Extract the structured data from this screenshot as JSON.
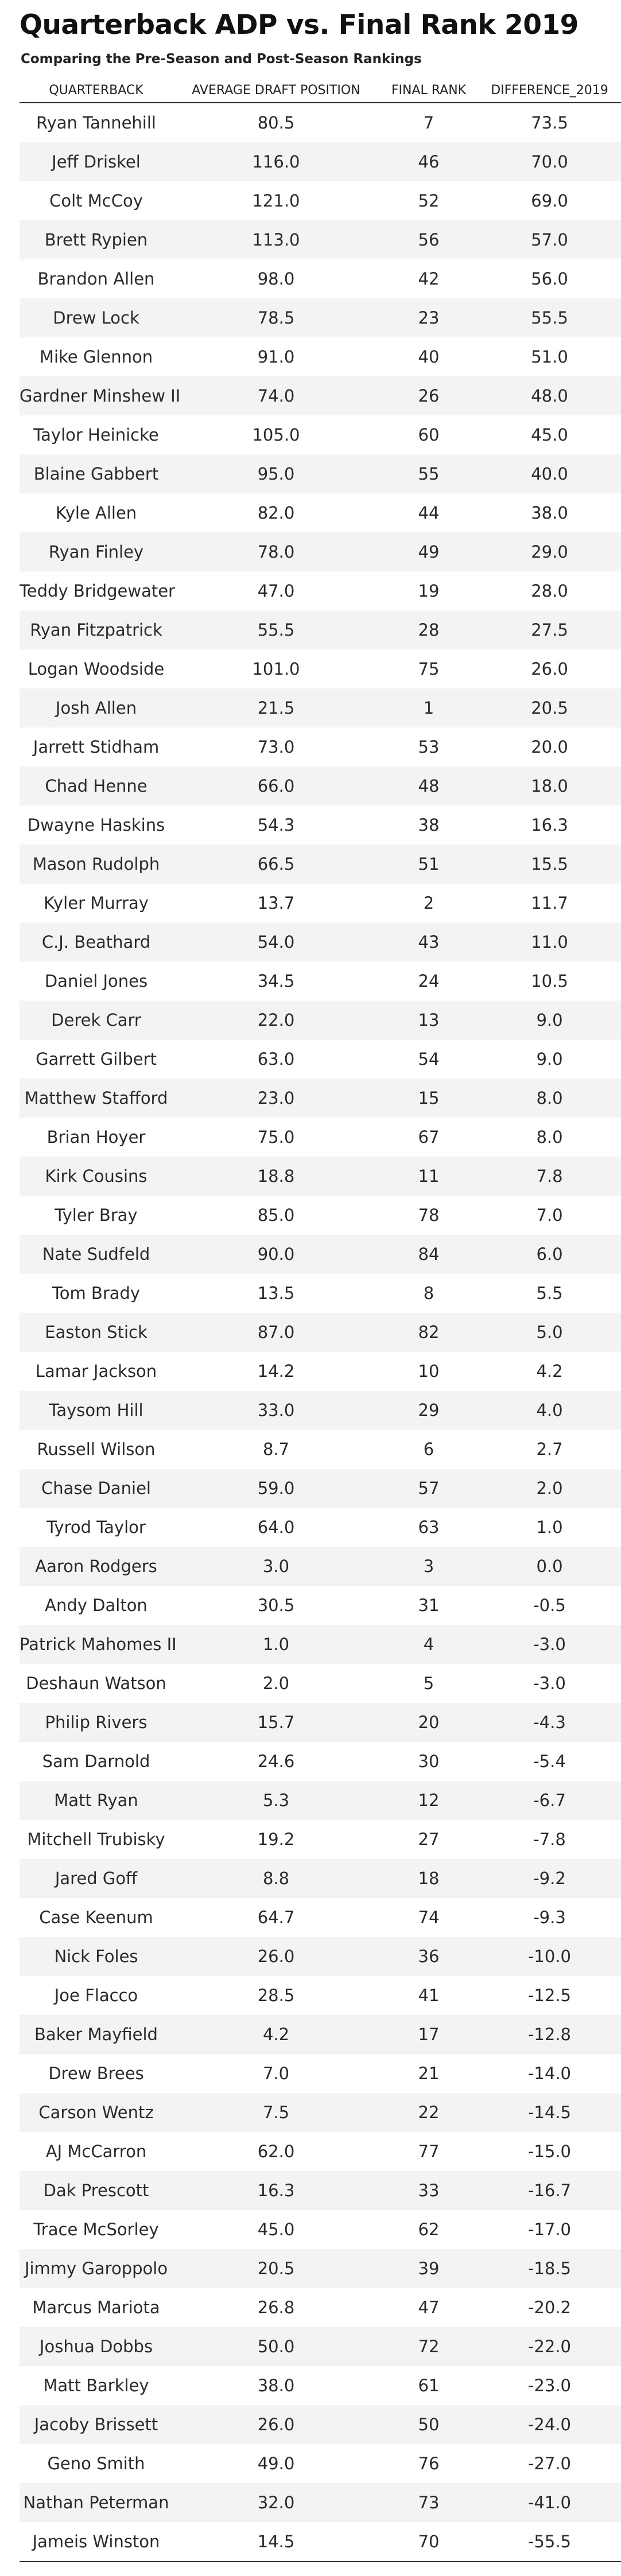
{
  "title": "Quarterback ADP vs. Final Rank 2019",
  "subtitle": "Comparing the Pre-Season and Post-Season Rankings",
  "columns": [
    "QUARTERBACK",
    "AVERAGE DRAFT POSITION",
    "FINAL RANK",
    "DIFFERENCE_2019"
  ],
  "rows": [
    [
      "Ryan Tannehill",
      "80.5",
      "7",
      "73.5"
    ],
    [
      "Jeff Driskel",
      "116.0",
      "46",
      "70.0"
    ],
    [
      "Colt McCoy",
      "121.0",
      "52",
      "69.0"
    ],
    [
      "Brett Rypien",
      "113.0",
      "56",
      "57.0"
    ],
    [
      "Brandon Allen",
      "98.0",
      "42",
      "56.0"
    ],
    [
      "Drew Lock",
      "78.5",
      "23",
      "55.5"
    ],
    [
      "Mike Glennon",
      "91.0",
      "40",
      "51.0"
    ],
    [
      "Gardner Minshew II",
      "74.0",
      "26",
      "48.0"
    ],
    [
      "Taylor Heinicke",
      "105.0",
      "60",
      "45.0"
    ],
    [
      "Blaine Gabbert",
      "95.0",
      "55",
      "40.0"
    ],
    [
      "Kyle Allen",
      "82.0",
      "44",
      "38.0"
    ],
    [
      "Ryan Finley",
      "78.0",
      "49",
      "29.0"
    ],
    [
      "Teddy Bridgewater",
      "47.0",
      "19",
      "28.0"
    ],
    [
      "Ryan Fitzpatrick",
      "55.5",
      "28",
      "27.5"
    ],
    [
      "Logan Woodside",
      "101.0",
      "75",
      "26.0"
    ],
    [
      "Josh Allen",
      "21.5",
      "1",
      "20.5"
    ],
    [
      "Jarrett Stidham",
      "73.0",
      "53",
      "20.0"
    ],
    [
      "Chad Henne",
      "66.0",
      "48",
      "18.0"
    ],
    [
      "Dwayne Haskins",
      "54.3",
      "38",
      "16.3"
    ],
    [
      "Mason Rudolph",
      "66.5",
      "51",
      "15.5"
    ],
    [
      "Kyler Murray",
      "13.7",
      "2",
      "11.7"
    ],
    [
      "C.J. Beathard",
      "54.0",
      "43",
      "11.0"
    ],
    [
      "Daniel Jones",
      "34.5",
      "24",
      "10.5"
    ],
    [
      "Derek Carr",
      "22.0",
      "13",
      "9.0"
    ],
    [
      "Garrett Gilbert",
      "63.0",
      "54",
      "9.0"
    ],
    [
      "Matthew Stafford",
      "23.0",
      "15",
      "8.0"
    ],
    [
      "Brian Hoyer",
      "75.0",
      "67",
      "8.0"
    ],
    [
      "Kirk Cousins",
      "18.8",
      "11",
      "7.8"
    ],
    [
      "Tyler Bray",
      "85.0",
      "78",
      "7.0"
    ],
    [
      "Nate Sudfeld",
      "90.0",
      "84",
      "6.0"
    ],
    [
      "Tom Brady",
      "13.5",
      "8",
      "5.5"
    ],
    [
      "Easton Stick",
      "87.0",
      "82",
      "5.0"
    ],
    [
      "Lamar Jackson",
      "14.2",
      "10",
      "4.2"
    ],
    [
      "Taysom Hill",
      "33.0",
      "29",
      "4.0"
    ],
    [
      "Russell Wilson",
      "8.7",
      "6",
      "2.7"
    ],
    [
      "Chase Daniel",
      "59.0",
      "57",
      "2.0"
    ],
    [
      "Tyrod Taylor",
      "64.0",
      "63",
      "1.0"
    ],
    [
      "Aaron Rodgers",
      "3.0",
      "3",
      "0.0"
    ],
    [
      "Andy Dalton",
      "30.5",
      "31",
      "-0.5"
    ],
    [
      "Patrick Mahomes II",
      "1.0",
      "4",
      "-3.0"
    ],
    [
      "Deshaun Watson",
      "2.0",
      "5",
      "-3.0"
    ],
    [
      "Philip Rivers",
      "15.7",
      "20",
      "-4.3"
    ],
    [
      "Sam Darnold",
      "24.6",
      "30",
      "-5.4"
    ],
    [
      "Matt Ryan",
      "5.3",
      "12",
      "-6.7"
    ],
    [
      "Mitchell Trubisky",
      "19.2",
      "27",
      "-7.8"
    ],
    [
      "Jared Goff",
      "8.8",
      "18",
      "-9.2"
    ],
    [
      "Case Keenum",
      "64.7",
      "74",
      "-9.3"
    ],
    [
      "Nick Foles",
      "26.0",
      "36",
      "-10.0"
    ],
    [
      "Joe Flacco",
      "28.5",
      "41",
      "-12.5"
    ],
    [
      "Baker Mayfield",
      "4.2",
      "17",
      "-12.8"
    ],
    [
      "Drew Brees",
      "7.0",
      "21",
      "-14.0"
    ],
    [
      "Carson Wentz",
      "7.5",
      "22",
      "-14.5"
    ],
    [
      "AJ McCarron",
      "62.0",
      "77",
      "-15.0"
    ],
    [
      "Dak Prescott",
      "16.3",
      "33",
      "-16.7"
    ],
    [
      "Trace McSorley",
      "45.0",
      "62",
      "-17.0"
    ],
    [
      "Jimmy Garoppolo",
      "20.5",
      "39",
      "-18.5"
    ],
    [
      "Marcus Mariota",
      "26.8",
      "47",
      "-20.2"
    ],
    [
      "Joshua Dobbs",
      "50.0",
      "72",
      "-22.0"
    ],
    [
      "Matt Barkley",
      "38.0",
      "61",
      "-23.0"
    ],
    [
      "Jacoby Brissett",
      "26.0",
      "50",
      "-24.0"
    ],
    [
      "Geno Smith",
      "49.0",
      "76",
      "-27.0"
    ],
    [
      "Nathan Peterman",
      "32.0",
      "73",
      "-41.0"
    ],
    [
      "Jameis Winston",
      "14.5",
      "70",
      "-55.5"
    ]
  ]
}
